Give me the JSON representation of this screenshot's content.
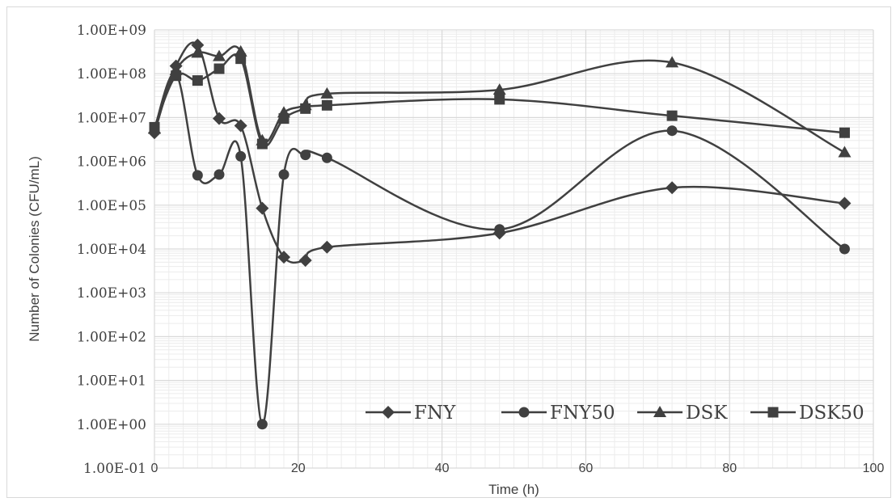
{
  "chart_data": {
    "type": "line",
    "title": "",
    "xlabel": "Time (h)",
    "ylabel": "Number of Colonies (CFU/mL)",
    "xlim": [
      0,
      100
    ],
    "ylim": [
      0.1,
      1000000000
    ],
    "y_scale": "log",
    "grid": true,
    "smooth": true,
    "legend_position": "bottom-right",
    "x_ticks": [
      "0",
      "20",
      "40",
      "60",
      "80",
      "100"
    ],
    "y_ticks": [
      "1.00E-01",
      "1.00E+00",
      "1.00E+01",
      "1.00E+02",
      "1.00E+03",
      "1.00E+04",
      "1.00E+05",
      "1.00E+06",
      "1.00E+07",
      "1.00E+08",
      "1.00E+09"
    ],
    "series": [
      {
        "name": "FNY",
        "marker": "diamond",
        "x": [
          0,
          3,
          6,
          9,
          12,
          15,
          18,
          21,
          24,
          48,
          72,
          96
        ],
        "y": [
          4500000,
          150000000,
          450000000,
          9500000,
          6500000,
          85000,
          6500,
          5500,
          11000,
          23000,
          250000,
          110000
        ]
      },
      {
        "name": "FNY50",
        "marker": "circle",
        "x": [
          0,
          3,
          6,
          9,
          12,
          15,
          18,
          21,
          24,
          48,
          72,
          96
        ],
        "y": [
          5500000,
          100000000,
          480000,
          500000,
          1300000,
          1,
          500000,
          1400000,
          1200000,
          28000,
          5000000,
          10000
        ]
      },
      {
        "name": "DSK",
        "marker": "triangle",
        "x": [
          0,
          3,
          6,
          9,
          12,
          15,
          18,
          21,
          24,
          48,
          72,
          96
        ],
        "y": [
          5500000,
          120000000,
          300000000,
          250000000,
          320000000,
          3000000,
          13000000,
          19000000,
          35000000,
          43000000,
          180000000,
          1600000
        ]
      },
      {
        "name": "DSK50",
        "marker": "square",
        "x": [
          0,
          3,
          6,
          9,
          12,
          15,
          18,
          21,
          24,
          48,
          72,
          96
        ],
        "y": [
          6000000,
          90000000,
          70000000,
          130000000,
          220000000,
          2500000,
          9500000,
          16000000,
          19000000,
          26000000,
          11000000,
          4500000
        ]
      }
    ],
    "colors": {
      "line": "#404040",
      "grid": "#d9d9d9",
      "minor_grid": "#ececec",
      "text": "#404040"
    }
  }
}
